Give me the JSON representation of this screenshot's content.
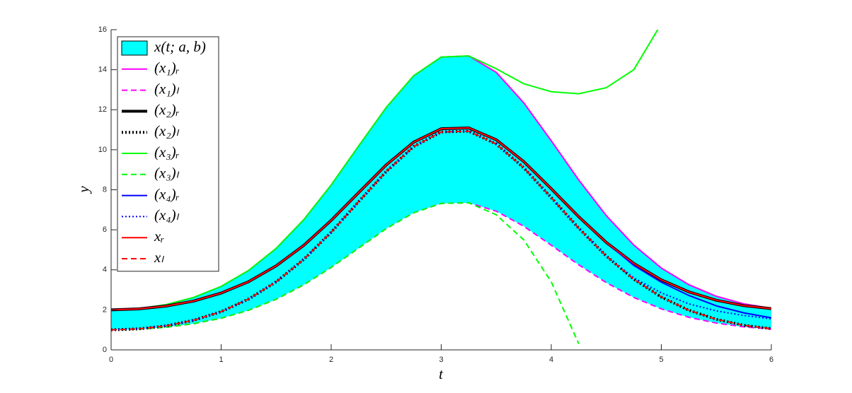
{
  "chart_data": {
    "type": "line",
    "xlabel": "t",
    "ylabel": "y",
    "x": [
      0,
      0.25,
      0.5,
      0.75,
      1,
      1.25,
      1.5,
      1.75,
      2,
      2.25,
      2.5,
      2.75,
      3,
      3.25,
      3.5,
      3.75,
      4,
      4.25,
      4.5,
      4.75,
      5,
      5.25,
      5.5,
      5.75,
      6
    ],
    "band": {
      "name": "x(t; a, b)",
      "color": "#00ffff",
      "lower": [
        1,
        1.03,
        1.13,
        1.31,
        1.58,
        1.98,
        2.53,
        3.25,
        4.12,
        5.09,
        6.06,
        6.85,
        7.32,
        7.35,
        6.93,
        6.18,
        5.23,
        4.25,
        3.36,
        2.62,
        2.05,
        1.63,
        1.34,
        1.15,
        1.04
      ],
      "upper": [
        2,
        2.06,
        2.26,
        2.62,
        3.17,
        3.97,
        5.07,
        6.5,
        8.24,
        10.19,
        12.11,
        13.7,
        14.63,
        14.69,
        13.87,
        12.35,
        10.45,
        8.49,
        6.71,
        5.24,
        4.09,
        3.26,
        2.68,
        2.3,
        2.08
      ]
    },
    "series": [
      {
        "name": "(x₁)ᵣ",
        "color": "#ff00ff",
        "style": "solid",
        "width": 2,
        "values": [
          2,
          2.06,
          2.26,
          2.62,
          3.17,
          3.97,
          5.07,
          6.5,
          8.24,
          10.19,
          12.11,
          13.7,
          14.63,
          14.69,
          13.87,
          12.35,
          10.45,
          8.49,
          6.71,
          5.24,
          4.09,
          3.26,
          2.68,
          2.3,
          2.08
        ]
      },
      {
        "name": "(x₁)ₗ",
        "color": "#ff00ff",
        "style": "dashed",
        "width": 2,
        "values": [
          1,
          1.03,
          1.13,
          1.31,
          1.58,
          1.98,
          2.53,
          3.25,
          4.12,
          5.09,
          6.06,
          6.85,
          7.32,
          7.35,
          6.93,
          6.18,
          5.23,
          4.25,
          3.36,
          2.62,
          2.05,
          1.63,
          1.34,
          1.15,
          1.04
        ]
      },
      {
        "name": "(x₂)ᵣ",
        "color": "#000000",
        "style": "solid",
        "width": 4,
        "values": [
          2,
          2.05,
          2.19,
          2.44,
          2.84,
          3.41,
          4.2,
          5.22,
          6.47,
          7.86,
          9.24,
          10.38,
          11.05,
          11.09,
          10.5,
          9.41,
          8.05,
          6.65,
          5.37,
          4.32,
          3.5,
          2.9,
          2.48,
          2.21,
          2.06
        ]
      },
      {
        "name": "(x₂)ₗ",
        "color": "#000000",
        "style": "dotted",
        "width": 4,
        "values": [
          1,
          1.05,
          1.2,
          1.48,
          1.91,
          2.54,
          3.4,
          4.52,
          5.88,
          7.41,
          8.91,
          10.16,
          10.89,
          10.93,
          10.29,
          9.1,
          7.61,
          6.08,
          4.69,
          3.53,
          2.64,
          1.98,
          1.53,
          1.23,
          1.06
        ]
      },
      {
        "name": "(x₃)ᵣ",
        "color": "#00ff00",
        "style": "solid",
        "width": 2,
        "values": [
          2,
          2.06,
          2.26,
          2.62,
          3.17,
          3.97,
          5.07,
          6.5,
          8.24,
          10.19,
          12.11,
          13.7,
          14.63,
          14.69,
          14.05,
          13.3,
          12.9,
          12.8,
          13.1,
          14.0,
          16.3,
          null,
          null,
          null,
          null
        ]
      },
      {
        "name": "(x₃)ₗ",
        "color": "#00ff00",
        "style": "dashed",
        "width": 2,
        "values": [
          1,
          1.03,
          1.13,
          1.31,
          1.58,
          1.98,
          2.53,
          3.25,
          4.12,
          5.09,
          6.06,
          6.85,
          7.32,
          7.35,
          6.75,
          5.5,
          3.4,
          0.3,
          null,
          null,
          null,
          null,
          null,
          null,
          null
        ]
      },
      {
        "name": "(x₄)ᵣ",
        "color": "#0000ff",
        "style": "solid",
        "width": 2,
        "values": [
          2,
          2.05,
          2.19,
          2.44,
          2.84,
          3.41,
          4.2,
          5.22,
          6.47,
          7.86,
          9.24,
          10.38,
          11.05,
          11.09,
          10.5,
          9.41,
          8.05,
          6.65,
          5.37,
          4.22,
          3.38,
          2.72,
          2.2,
          1.85,
          1.6
        ]
      },
      {
        "name": "(x₄)ₗ",
        "color": "#0000ff",
        "style": "dotted",
        "width": 2,
        "values": [
          1,
          1.05,
          1.2,
          1.48,
          1.91,
          2.54,
          3.4,
          4.52,
          5.88,
          7.41,
          8.91,
          10.16,
          10.89,
          10.93,
          10.29,
          9.1,
          7.61,
          6.08,
          4.69,
          3.6,
          2.85,
          2.3,
          1.95,
          1.72,
          1.55
        ]
      },
      {
        "name": "xᵣ",
        "color": "#ff0000",
        "style": "solid",
        "width": 2,
        "values": [
          2,
          2.05,
          2.19,
          2.44,
          2.84,
          3.41,
          4.2,
          5.22,
          6.47,
          7.86,
          9.24,
          10.38,
          11.05,
          11.09,
          10.5,
          9.41,
          8.05,
          6.65,
          5.37,
          4.32,
          3.5,
          2.9,
          2.48,
          2.21,
          2.06
        ]
      },
      {
        "name": "xₗ",
        "color": "#ff0000",
        "style": "dashed",
        "width": 2,
        "values": [
          1,
          1.05,
          1.2,
          1.48,
          1.91,
          2.54,
          3.4,
          4.52,
          5.88,
          7.41,
          8.91,
          10.16,
          10.89,
          10.93,
          10.29,
          9.1,
          7.61,
          6.08,
          4.69,
          3.53,
          2.64,
          1.98,
          1.53,
          1.23,
          1.06
        ]
      }
    ],
    "xlim": [
      0,
      6
    ],
    "xticks": [
      0,
      1,
      2,
      3,
      4,
      5,
      6
    ],
    "ylim": [
      0,
      16
    ],
    "yticks": [
      0,
      2,
      4,
      6,
      8,
      10,
      12,
      14,
      16
    ],
    "legend": "upper-left"
  }
}
